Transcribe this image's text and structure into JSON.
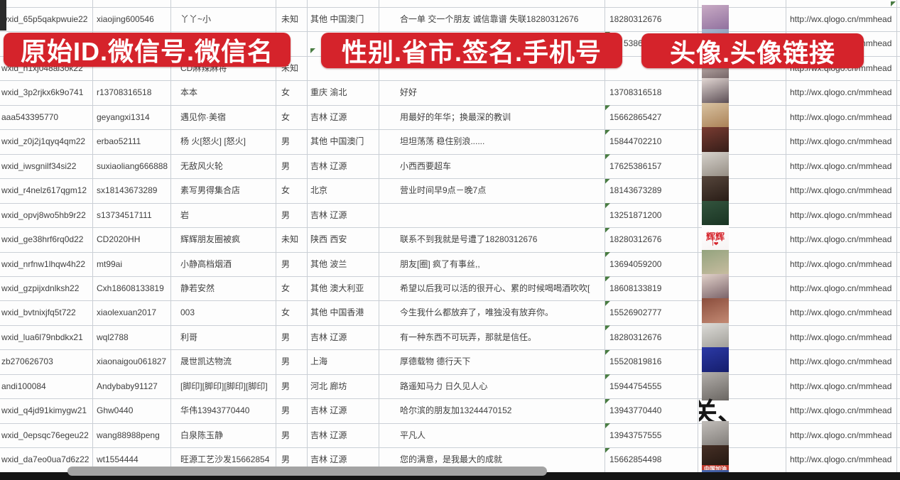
{
  "banners": [
    {
      "label": "原始ID.微信号.微信名"
    },
    {
      "label": "性别.省市.签名.手机号"
    },
    {
      "label": "头像.头像链接"
    }
  ],
  "colors": {
    "banner_red": "#d5232b",
    "note_arrow_green": "#4a7d43",
    "grid_line": "#cbd0d6",
    "cell_text": "#3f3f3f",
    "scrollbar_thumb": "#a3a3a3",
    "bottom_bar": "#141414"
  },
  "sheet": {
    "url_text": "http://wx.qlogo.cn/mmhead",
    "fragments": {
      "row2_phone_tail": "5386"
    },
    "rows": [
      {
        "wxid": "wxid_65p5qakpwuie22",
        "wechat_id": "xiaojing600546",
        "name": "丫丫~小",
        "gender": "未知",
        "region": "其他 中国澳门",
        "signature": "合一单 交一个朋友 诚信靠谱 失联18280312676",
        "phone": "18280312676",
        "note": true,
        "url": true,
        "avatar": {
          "c1": "#c9abc5",
          "c2": "#8a6a9a"
        }
      },
      {
        "wxid": "",
        "wechat_id": "",
        "name": "",
        "gender": "",
        "region": "",
        "signature": "",
        "phone": "",
        "note": false,
        "url": true,
        "avatar": {
          "c1": "#a8b8d0",
          "c2": "#6a7a9a"
        }
      },
      {
        "wxid": "wxid_h1xj048al3ok22",
        "wechat_id": "",
        "name": "CD麻辣麻将",
        "gender": "未知",
        "region": "",
        "signature": "",
        "phone": "",
        "note": false,
        "url": true,
        "avatar": {
          "c1": "#d8c8c4",
          "c2": "#6a5a5c"
        }
      },
      {
        "wxid": "wxid_3p2rjkx6k9o741",
        "wechat_id": "r13708316518",
        "name": "本本",
        "gender": "女",
        "region": "重庆 渝北",
        "signature": "好好",
        "phone": "13708316518",
        "note": true,
        "url": true,
        "avatar": {
          "c1": "#e3d8d4",
          "c2": "#4e4048"
        }
      },
      {
        "wxid": "aaa543395770",
        "wechat_id": "geyangxi1314",
        "name": "遇见你·美宿",
        "gender": "女",
        "region": "吉林 辽源",
        "signature": "用最好的年华；换最深的教训",
        "phone": "15662865427",
        "note": true,
        "url": true,
        "avatar": {
          "c1": "#d9c3a2",
          "c2": "#a57a4e"
        }
      },
      {
        "wxid": "wxid_z0j2j1qyq4qm22",
        "wechat_id": "erbao52111",
        "name": "杨 火[怒火] [怒火]",
        "gender": "男",
        "region": "其他 中国澳门",
        "signature": "坦坦荡荡 稳住别浪......",
        "phone": "15844702210",
        "note": true,
        "url": true,
        "avatar": {
          "c1": "#7a3c32",
          "c2": "#2e1a16"
        }
      },
      {
        "wxid": "wxid_iwsgnilf34si22",
        "wechat_id": "suxiaoliang666888",
        "name": "无敌风火轮",
        "gender": "男",
        "region": "吉林 辽源",
        "signature": "小西西要超车",
        "phone": "17625386157",
        "note": true,
        "url": true,
        "avatar": {
          "c1": "#d6d2cc",
          "c2": "#8e867c"
        }
      },
      {
        "wxid": "wxid_r4nelz617qgm12",
        "wechat_id": "sx18143673289",
        "name": "素写男得集合店",
        "gender": "女",
        "region": "北京",
        "signature": "营业时间早9点－晚7点",
        "phone": "18143673289",
        "note": true,
        "url": true,
        "avatar": {
          "c1": "#56463c",
          "c2": "#241812"
        }
      },
      {
        "wxid": "wxid_opvj8wo5hb9r22",
        "wechat_id": "s13734517111",
        "name": "岩",
        "gender": "男",
        "region": "吉林 辽源",
        "signature": "",
        "phone": "13251871200",
        "note": true,
        "url": true,
        "avatar": {
          "c1": "#33543e",
          "c2": "#16301f"
        }
      },
      {
        "wxid": "wxid_ge38hrf6rq0d22",
        "wechat_id": "CD2020HH",
        "name": "辉辉朋友圈被疯",
        "gender": "未知",
        "region": "陕西 西安",
        "signature": "联系不到我就是号遭了18280312676",
        "phone": "18280312676",
        "note": true,
        "url": true,
        "avatar": {
          "c1": "#ffffff",
          "c2": "#f6f2f2",
          "txt": "辉辉",
          "txt_color": "#d5232b",
          "txt_size": 13,
          "sub": "I❤"
        }
      },
      {
        "wxid": "wxid_nrfnw1lhqw4h22",
        "wechat_id": "mt99ai",
        "name": "小静高档烟酒",
        "gender": "男",
        "region": "其他 波兰",
        "signature": "朋友[圈] 疯了有事丝,,",
        "phone": "13694059200",
        "note": true,
        "url": true,
        "avatar": {
          "c1": "#93a37e",
          "c2": "#cdbfa3"
        }
      },
      {
        "wxid": "wxid_gzpijxdnlksh22",
        "wechat_id": "Cxh18608133819",
        "name": "静若安然",
        "gender": "女",
        "region": "其他 澳大利亚",
        "signature": "希望以后我可以活的很开心、累的时候喝喝酒吹吹[",
        "phone": "18608133819",
        "note": true,
        "url": true,
        "avatar": {
          "c1": "#e2d2ca",
          "c2": "#6e565e"
        }
      },
      {
        "wxid": "wxid_bvtnixjfq5t722",
        "wechat_id": "xiaolexuan2017",
        "name": "003",
        "gender": "女",
        "region": "其他 中国香港",
        "signature": "今生我什么都放弃了，唯独没有放弃你。",
        "phone": "15526902777",
        "note": true,
        "url": true,
        "avatar": {
          "c1": "#8a4d3c",
          "c2": "#c99079"
        }
      },
      {
        "wxid": "wxid_lua6l79nbdkx21",
        "wechat_id": "wql2788",
        "name": "利哥",
        "gender": "男",
        "region": "吉林 辽源",
        "signature": "有一种东西不可玩弄，那就是信任。",
        "phone": "18280312676",
        "note": true,
        "url": true,
        "avatar": {
          "c1": "#dddcd8",
          "c2": "#9a9892"
        }
      },
      {
        "wxid": "zb270626703",
        "wechat_id": "xiaonaigou061827",
        "name": "晟世凯达物流",
        "gender": "男",
        "region": "上海",
        "signature": "厚德载物 德行天下",
        "phone": "15520819816",
        "note": true,
        "url": true,
        "avatar": {
          "c1": "#2c3aa6",
          "c2": "#121a66"
        }
      },
      {
        "wxid": "andi100084",
        "wechat_id": "Andybaby91127",
        "name": "[脚印][脚印][脚印][脚印]",
        "gender": "男",
        "region": "河北 廊坊",
        "signature": "路遥知马力 日久见人心",
        "phone": "15944754555",
        "note": true,
        "url": true,
        "avatar": {
          "c1": "#b3afab",
          "c2": "#6a6662"
        }
      },
      {
        "wxid": "wxid_q4jd91kimygw21",
        "wechat_id": "Ghw0440",
        "name": "华伟13943770440",
        "gender": "男",
        "region": "吉林 辽源",
        "signature": "哈尔滨的朋友加13244470152",
        "phone": "13943770440",
        "note": true,
        "url": true,
        "avatar": {
          "big": true,
          "txt": "关、",
          "txt_color": "#161616",
          "txt_size": 38
        }
      },
      {
        "wxid": "wxid_0epsqc76egeu22",
        "wechat_id": "wang88988peng",
        "name": "白泉陈玉静",
        "gender": "男",
        "region": "吉林 辽源",
        "signature": "平凡人",
        "phone": "13943757555",
        "note": true,
        "url": true,
        "avatar": {
          "c1": "#c2beba",
          "c2": "#7a7672"
        }
      },
      {
        "wxid": "wxid_da7eo0ua7d6z22",
        "wechat_id": "wt1554444",
        "name": "旺源工艺沙发15662854",
        "gender": "男",
        "region": "吉林 辽源",
        "signature": "您的满意，是我最大的成就",
        "phone": "15662854498",
        "note": true,
        "url": true,
        "avatar": {
          "c1": "#463026",
          "c2": "#1c120c",
          "band": "中国加油",
          "band_bg": "#c23b2e",
          "band_color": "#ffffff"
        }
      },
      {
        "wxid": "",
        "wechat_id": "",
        "name": "",
        "gender": "",
        "region": "",
        "signature": "",
        "phone": "",
        "note": false,
        "url": false,
        "avatar": {
          "c1": "#4868b0",
          "c2": "#223066"
        }
      }
    ]
  }
}
